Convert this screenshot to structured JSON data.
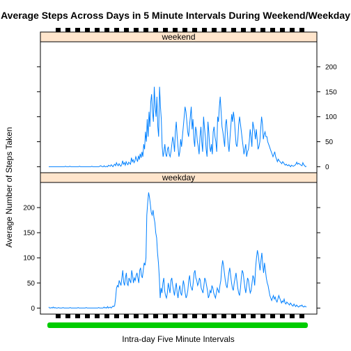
{
  "chart_data": {
    "type": "line",
    "title": "Average Steps Across Days in 5 Minute Intervals During Weekend/Weekday",
    "xlabel": "Intra-day Five Minute Intervals",
    "ylabel": "Average Number of Steps Taken",
    "ylim": [
      -12,
      250
    ],
    "ticks": [
      "0",
      "50",
      "100",
      "150",
      "200"
    ],
    "line_color": "#0080ff",
    "strip_color": "#ffe5cc",
    "tick_mark_color": "#000000",
    "x_tick_color": "#00cc00",
    "grid": false,
    "panels": [
      {
        "name": "weekend",
        "values": [
          0,
          0,
          0,
          0,
          0,
          0,
          0,
          0,
          0,
          0,
          0,
          0,
          0,
          0,
          0,
          0,
          0,
          0,
          0,
          1,
          0,
          0,
          0,
          0,
          1,
          0,
          0,
          0,
          0,
          0,
          0,
          0,
          0,
          0,
          0,
          1,
          0,
          0,
          0,
          0,
          0,
          0,
          0,
          0,
          0,
          0,
          0,
          0,
          0,
          1,
          0,
          0,
          0,
          0,
          0,
          0,
          0,
          0,
          1,
          2,
          1,
          0,
          0,
          2,
          0,
          0,
          1,
          0,
          3,
          2,
          1,
          4,
          2,
          0,
          3,
          5,
          2,
          8,
          4,
          2,
          6,
          3,
          1,
          4,
          12,
          5,
          8,
          3,
          10,
          6,
          4,
          9,
          7,
          5,
          18,
          10,
          14,
          8,
          12,
          20,
          15,
          10,
          22,
          14,
          26,
          18,
          30,
          20,
          45,
          35,
          70,
          50,
          95,
          60,
          110,
          80,
          130,
          145,
          110,
          90,
          160,
          120,
          100,
          140,
          80,
          60,
          160,
          120,
          95,
          40,
          20,
          30,
          45,
          25,
          20,
          35,
          40,
          25,
          20,
          30,
          45,
          60,
          50,
          30,
          70,
          90,
          60,
          40,
          20,
          30,
          55,
          40,
          60,
          80,
          100,
          120,
          110,
          90,
          70,
          60,
          80,
          100,
          120,
          75,
          95,
          55,
          40,
          80,
          70,
          50,
          40,
          25,
          60,
          80,
          50,
          30,
          100,
          80,
          60,
          35,
          20,
          90,
          70,
          40,
          30,
          45,
          25,
          70,
          80,
          60,
          50,
          30,
          100,
          90,
          120,
          140,
          110,
          80,
          70,
          55,
          40,
          85,
          95,
          70,
          45,
          30,
          55,
          80,
          105,
          90,
          110,
          95,
          70,
          45,
          40,
          55,
          85,
          100,
          85,
          70,
          55,
          40,
          25,
          35,
          45,
          20,
          30,
          35,
          50,
          75,
          60,
          40,
          90,
          80,
          70,
          55,
          75,
          55,
          35,
          40,
          50,
          75,
          100,
          85,
          55,
          65,
          70,
          60,
          60,
          50,
          45,
          40,
          35,
          30,
          25,
          20,
          25,
          30,
          20,
          15,
          10,
          15,
          12,
          10,
          8,
          6,
          10,
          8,
          5,
          3,
          5,
          3,
          2,
          4,
          2,
          0,
          3,
          2,
          1,
          2,
          3,
          5,
          9,
          5,
          7,
          6,
          4,
          3,
          2,
          8,
          4,
          2,
          0,
          1
        ]
      },
      {
        "name": "weekday",
        "values": [
          2,
          0,
          0,
          1,
          0,
          2,
          0,
          1,
          0,
          0,
          0,
          1,
          0,
          0,
          0,
          0,
          1,
          0,
          0,
          0,
          0,
          0,
          0,
          0,
          1,
          0,
          0,
          0,
          0,
          0,
          0,
          0,
          0,
          1,
          0,
          0,
          0,
          0,
          0,
          0,
          0,
          0,
          1,
          0,
          0,
          0,
          0,
          0,
          0,
          0,
          0,
          0,
          0,
          0,
          0,
          0,
          1,
          0,
          0,
          0,
          0,
          0,
          2,
          0,
          1,
          0,
          3,
          0,
          1,
          2,
          0,
          2,
          4,
          3,
          5,
          20,
          40,
          45,
          42,
          55,
          50,
          45,
          60,
          75,
          52,
          45,
          60,
          70,
          48,
          45,
          60,
          55,
          50,
          75,
          65,
          50,
          60,
          55,
          65,
          70,
          60,
          50,
          75,
          80,
          65,
          60,
          75,
          90,
          85,
          100,
          185,
          210,
          230,
          220,
          205,
          190,
          185,
          195,
          180,
          170,
          150,
          140,
          110,
          90,
          60,
          20,
          40,
          30,
          50,
          60,
          35,
          25,
          20,
          30,
          50,
          40,
          30,
          55,
          60,
          45,
          35,
          25,
          40,
          50,
          30,
          20,
          35,
          45,
          30,
          25,
          40,
          55,
          45,
          30,
          20,
          25,
          35,
          55,
          65,
          45,
          40,
          35,
          50,
          70,
          75,
          60,
          55,
          45,
          50,
          60,
          55,
          40,
          35,
          30,
          45,
          60,
          55,
          45,
          35,
          20,
          25,
          35,
          30,
          45,
          40,
          30,
          25,
          20,
          30,
          40,
          35,
          30,
          45,
          55,
          80,
          95,
          85,
          70,
          55,
          45,
          40,
          55,
          70,
          80,
          65,
          50,
          40,
          35,
          50,
          60,
          70,
          55,
          40,
          30,
          25,
          40,
          60,
          75,
          70,
          55,
          40,
          30,
          45,
          60,
          55,
          40,
          30,
          35,
          50,
          65,
          60,
          45,
          80,
          100,
          115,
          105,
          90,
          75,
          95,
          110,
          85,
          70,
          90,
          75,
          60,
          50,
          45,
          35,
          25,
          20,
          15,
          20,
          25,
          18,
          22,
          15,
          12,
          18,
          25,
          20,
          15,
          10,
          14,
          12,
          18,
          10,
          8,
          12,
          10,
          8,
          6,
          10,
          8,
          5,
          4,
          8,
          5,
          3,
          6,
          4,
          2,
          3,
          5,
          4,
          6,
          3,
          2,
          4,
          3,
          2
        ]
      }
    ]
  }
}
